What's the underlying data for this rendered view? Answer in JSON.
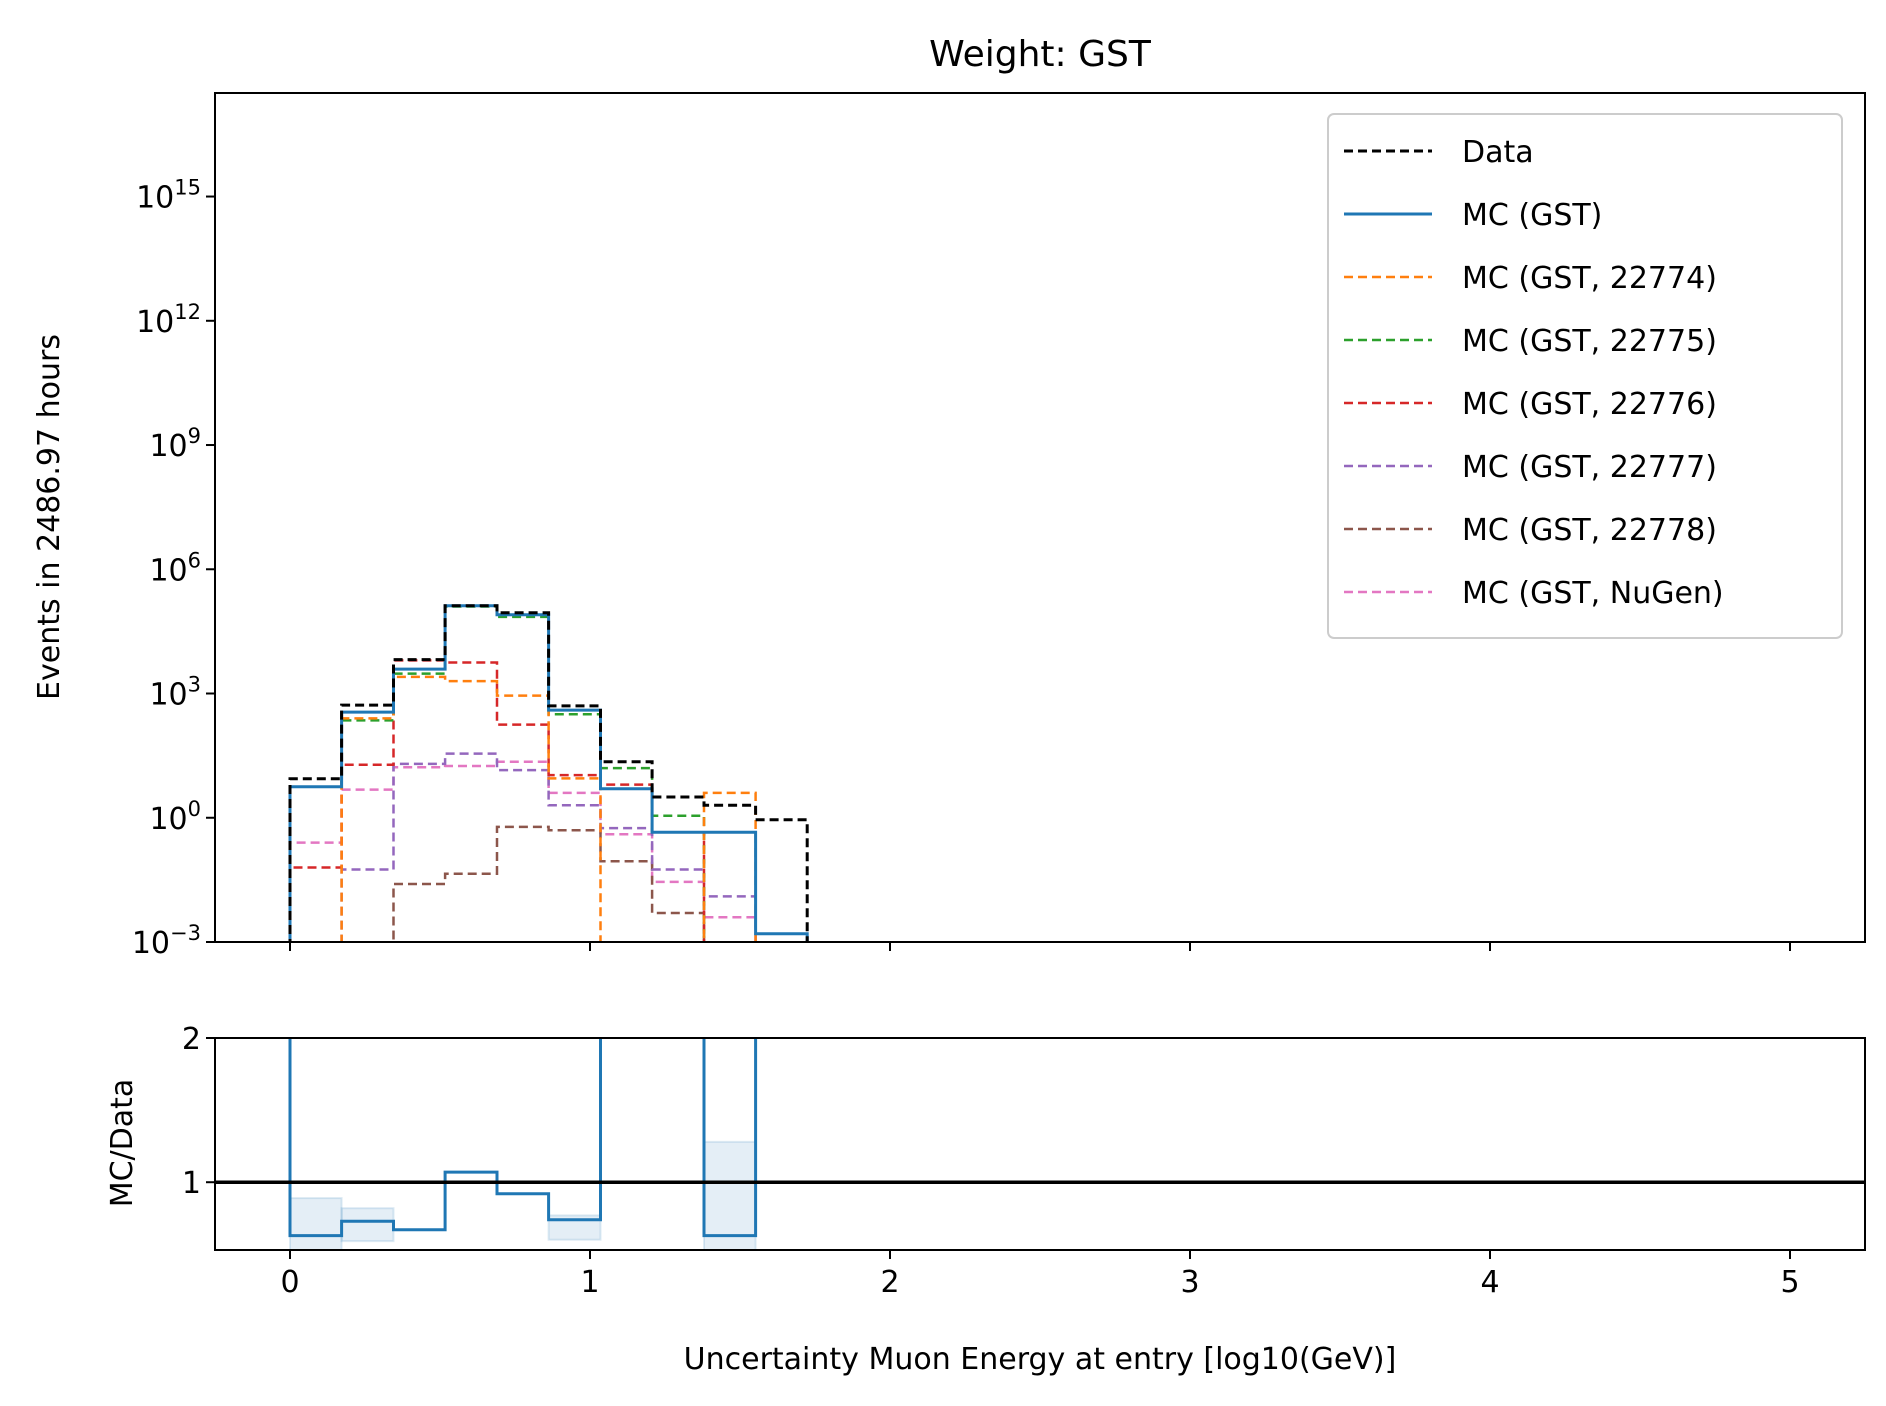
{
  "chart_data": {
    "type": "histogram",
    "title": "Weight: GST",
    "xlabel": "Uncertainty Muon Energy at entry [log10(GeV)]",
    "main": {
      "ylabel": "Events in 2486.97 hours",
      "yscale": "log",
      "ylim_exp": [
        -3,
        17.5
      ],
      "ytick_exps": [
        -3,
        0,
        3,
        6,
        9,
        12,
        15
      ],
      "ytick_labels": [
        {
          "base": "10",
          "exp": "−3"
        },
        {
          "base": "10",
          "exp": "0"
        },
        {
          "base": "10",
          "exp": "3"
        },
        {
          "base": "10",
          "exp": "6"
        },
        {
          "base": "10",
          "exp": "9"
        },
        {
          "base": "10",
          "exp": "12"
        },
        {
          "base": "10",
          "exp": "15"
        }
      ]
    },
    "ratio": {
      "ylabel": "MC/Data",
      "ylim": [
        0.53,
        2.0
      ],
      "yticks": [
        1,
        2
      ],
      "ytick_labels": [
        "1",
        "2"
      ],
      "reference_line": 1.0,
      "values": [
        0.63,
        0.73,
        0.67,
        1.07,
        0.92,
        0.74,
        null,
        null,
        0.63,
        null
      ],
      "band_upper": [
        0.89,
        0.82,
        null,
        null,
        null,
        0.77,
        null,
        null,
        1.28,
        null
      ]
    },
    "xlim": [
      -0.25,
      5.25
    ],
    "xticks": [
      0,
      1,
      2,
      3,
      4,
      5
    ],
    "xtick_labels": [
      "0",
      "1",
      "2",
      "3",
      "4",
      "5"
    ],
    "bin_edges": [
      0.0,
      0.172,
      0.345,
      0.517,
      0.69,
      0.862,
      1.035,
      1.207,
      1.38,
      1.552,
      1.724
    ],
    "legend": {
      "position": "upper right"
    },
    "series": [
      {
        "name": "Data",
        "color": "#000000",
        "dash": true,
        "width": 3,
        "log10_values": [
          0.94,
          2.72,
          3.82,
          5.12,
          4.95,
          2.7,
          1.35,
          0.5,
          0.3,
          -0.05
        ]
      },
      {
        "name": "MC (GST)",
        "color": "#1f77b4",
        "dash": false,
        "width": 3,
        "log10_values": [
          0.75,
          2.55,
          3.59,
          5.12,
          4.9,
          2.6,
          0.7,
          -0.35,
          -0.35,
          -2.8
        ]
      },
      {
        "name": "MC (GST, 22774)",
        "color": "#ff7f0e",
        "dash": true,
        "width": 2.5,
        "log10_values": [
          null,
          2.4,
          3.4,
          3.3,
          2.95,
          0.95,
          null,
          null,
          0.6,
          null
        ]
      },
      {
        "name": "MC (GST, 22775)",
        "color": "#2ca02c",
        "dash": true,
        "width": 2.5,
        "log10_values": [
          0.75,
          2.35,
          3.48,
          5.1,
          4.85,
          2.5,
          1.2,
          0.05,
          null,
          null
        ]
      },
      {
        "name": "MC (GST, 22776)",
        "color": "#d62728",
        "dash": true,
        "width": 2.5,
        "log10_values": [
          -1.2,
          1.28,
          3.8,
          3.75,
          2.25,
          1.03,
          0.8,
          -0.35,
          null,
          null
        ]
      },
      {
        "name": "MC (GST, 22777)",
        "color": "#9467bd",
        "dash": true,
        "width": 2.5,
        "log10_values": [
          null,
          -1.25,
          1.3,
          1.55,
          1.15,
          0.3,
          -0.25,
          -1.25,
          -1.9,
          null
        ]
      },
      {
        "name": "MC (GST, 22778)",
        "color": "#8c564b",
        "dash": true,
        "width": 2.5,
        "log10_values": [
          null,
          null,
          -1.6,
          -1.35,
          -0.22,
          -0.3,
          -1.05,
          -2.3,
          null,
          null
        ]
      },
      {
        "name": "MC (GST, NuGen)",
        "color": "#e377c2",
        "dash": true,
        "width": 2.5,
        "log10_values": [
          -0.6,
          0.68,
          1.22,
          1.25,
          1.35,
          0.6,
          -0.4,
          -1.55,
          -2.4,
          null
        ]
      }
    ]
  }
}
